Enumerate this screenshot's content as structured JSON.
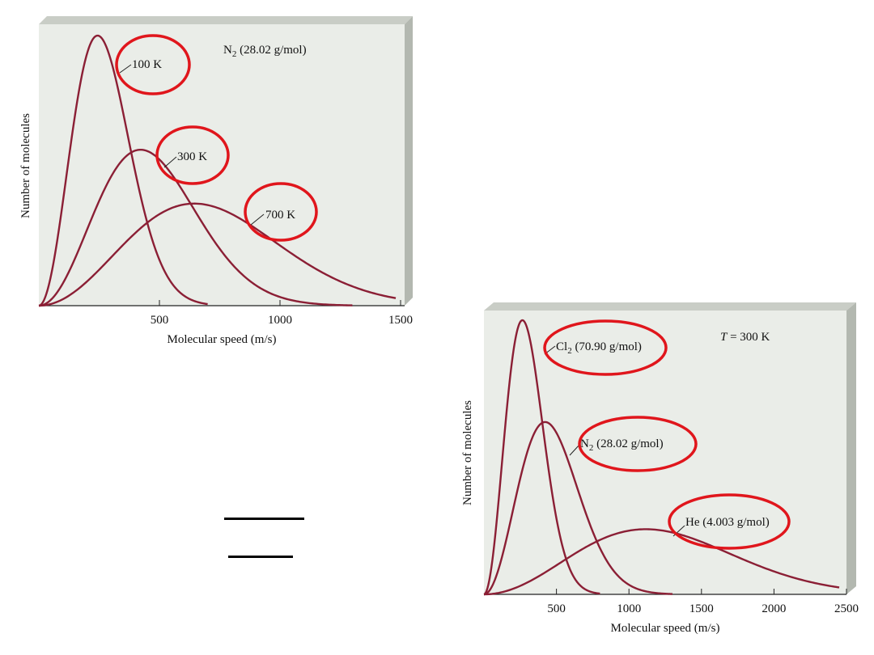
{
  "chart_data": [
    {
      "type": "line",
      "title": "N₂ (28.02 g/mol)",
      "title_parts": {
        "pre": "N",
        "sub": "2",
        "post": " (28.02 g/mol)"
      },
      "xlabel": "Molecular speed (m/s)",
      "ylabel": "Number of molecules",
      "xlim": [
        0,
        1500
      ],
      "xticks": [
        500,
        1000,
        1500
      ],
      "grid": false,
      "molar_mass_kg_per_mol": 0.02802,
      "series": [
        {
          "name": "100 K",
          "temperature_K": 100,
          "x_end": 700,
          "x": [
            0,
            100,
            200,
            243,
            300,
            400,
            500,
            600,
            700
          ],
          "y": [
            0,
            0.55,
            0.96,
            1.0,
            0.93,
            0.56,
            0.2,
            0.04,
            0.004
          ]
        },
        {
          "name": "300 K",
          "temperature_K": 300,
          "x_end": 1300,
          "x": [
            0,
            200,
            421,
            600,
            800,
            1000,
            1200,
            1300
          ],
          "y": [
            0,
            0.32,
            0.58,
            0.45,
            0.19,
            0.05,
            0.008,
            0.003
          ]
        },
        {
          "name": "700 K",
          "temperature_K": 700,
          "x_end": 1480,
          "x": [
            0,
            300,
            643,
            900,
            1200,
            1480
          ],
          "y": [
            0,
            0.2,
            0.37,
            0.29,
            0.1,
            0.02
          ]
        }
      ]
    },
    {
      "type": "line",
      "title": "T = 300 K",
      "title_parts": {
        "var": "T",
        "rest": " = 300 K"
      },
      "xlabel": "Molecular speed (m/s)",
      "ylabel": "Number of molecules",
      "xlim": [
        0,
        2500
      ],
      "xticks": [
        500,
        1000,
        1500,
        2000,
        2500
      ],
      "grid": false,
      "temperature_K": 300,
      "series": [
        {
          "name": "Cl₂ (70.90 g/mol)",
          "label_parts": {
            "pre": "Cl",
            "sub": "2",
            "post": " (70.90 g/mol)"
          },
          "molar_mass_kg_per_mol": 0.0709,
          "x_end": 800,
          "x": [
            0,
            150,
            265,
            400,
            600,
            800
          ],
          "y": [
            0,
            0.62,
            1.0,
            0.73,
            0.14,
            0.01
          ]
        },
        {
          "name": "N₂ (28.02 g/mol)",
          "label_parts": {
            "pre": "N",
            "sub": "2",
            "post": " (28.02 g/mol)"
          },
          "molar_mass_kg_per_mol": 0.02802,
          "x_end": 1300,
          "x": [
            0,
            200,
            421,
            700,
            1000,
            1300
          ],
          "y": [
            0,
            0.38,
            0.63,
            0.35,
            0.06,
            0.004
          ]
        },
        {
          "name": "He (4.003 g/mol)",
          "label_parts": {
            "pre": "He (4.003 g/mol)"
          },
          "molar_mass_kg_per_mol": 0.004003,
          "x_end": 2450,
          "x": [
            0,
            500,
            1114,
            1500,
            2000,
            2450
          ],
          "y": [
            0,
            0.13,
            0.23,
            0.19,
            0.08,
            0.02
          ]
        }
      ]
    }
  ]
}
